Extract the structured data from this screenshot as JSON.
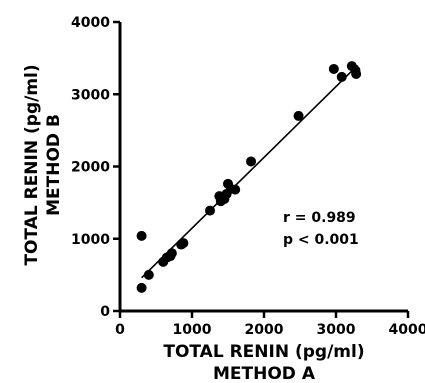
{
  "chart_data": {
    "type": "scatter",
    "x_axis": {
      "title_line1": "TOTAL RENIN (pg/ml)",
      "title_line2": "METHOD A",
      "range": [
        0,
        4000
      ],
      "ticks": [
        0,
        1000,
        2000,
        3000,
        4000
      ],
      "tick_labels": [
        "0",
        "1000",
        "2000",
        "3000",
        "4000"
      ]
    },
    "y_axis": {
      "title_line1": "TOTAL RENIN (pg/ml)",
      "title_line2": "METHOD B",
      "range": [
        0,
        4000
      ],
      "ticks": [
        0,
        1000,
        2000,
        3000,
        4000
      ],
      "tick_labels": [
        "0",
        "1000",
        "2000",
        "3000",
        "4000"
      ]
    },
    "points": [
      {
        "x": 300,
        "y": 1040
      },
      {
        "x": 300,
        "y": 320
      },
      {
        "x": 400,
        "y": 500
      },
      {
        "x": 600,
        "y": 680
      },
      {
        "x": 650,
        "y": 740
      },
      {
        "x": 700,
        "y": 760
      },
      {
        "x": 720,
        "y": 800
      },
      {
        "x": 850,
        "y": 920
      },
      {
        "x": 880,
        "y": 940
      },
      {
        "x": 1250,
        "y": 1390
      },
      {
        "x": 1380,
        "y": 1590
      },
      {
        "x": 1400,
        "y": 1520
      },
      {
        "x": 1450,
        "y": 1550
      },
      {
        "x": 1480,
        "y": 1620
      },
      {
        "x": 1500,
        "y": 1760
      },
      {
        "x": 1540,
        "y": 1690
      },
      {
        "x": 1600,
        "y": 1680
      },
      {
        "x": 1820,
        "y": 2070
      },
      {
        "x": 2480,
        "y": 2700
      },
      {
        "x": 2970,
        "y": 3350
      },
      {
        "x": 3080,
        "y": 3240
      },
      {
        "x": 3220,
        "y": 3390
      },
      {
        "x": 3270,
        "y": 3330
      },
      {
        "x": 3280,
        "y": 3280
      }
    ],
    "regression_line": {
      "x1": 300,
      "y1": 460,
      "x2": 3300,
      "y2": 3400
    },
    "annotation": {
      "line1": "r = 0.989",
      "line2": "p < 0.001"
    },
    "grid": false,
    "legend": "none"
  }
}
